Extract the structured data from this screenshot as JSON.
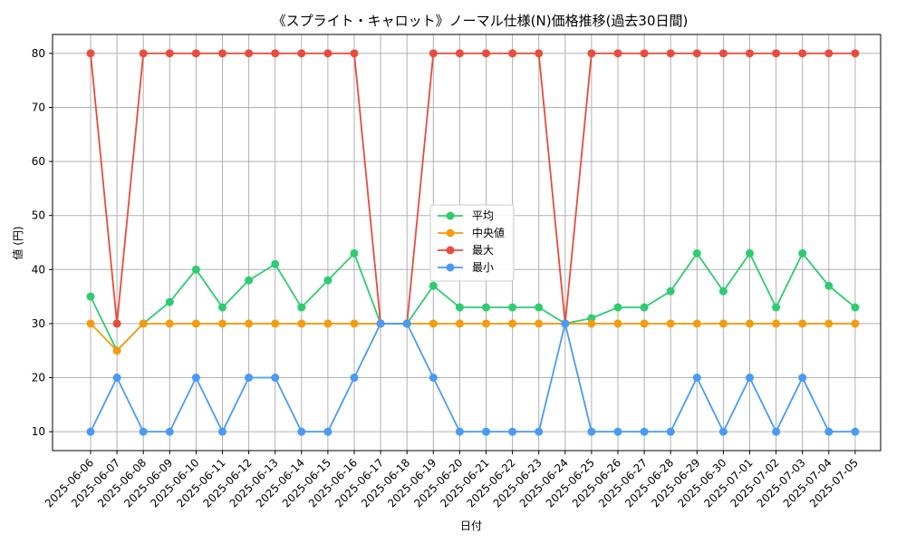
{
  "chart_data": {
    "type": "line",
    "title": "《スプライト・キャロット》ノーマル仕様(N)価格推移(過去30日間)",
    "xlabel": "日付",
    "ylabel": "値 (円)",
    "ylim": [
      6.5,
      83.5
    ],
    "yticks": [
      10,
      20,
      30,
      40,
      50,
      60,
      70,
      80
    ],
    "grid": true,
    "legend_position": "center",
    "categories": [
      "2025-06-06",
      "2025-06-07",
      "2025-06-08",
      "2025-06-09",
      "2025-06-10",
      "2025-06-11",
      "2025-06-12",
      "2025-06-13",
      "2025-06-14",
      "2025-06-15",
      "2025-06-16",
      "2025-06-17",
      "2025-06-18",
      "2025-06-19",
      "2025-06-20",
      "2025-06-21",
      "2025-06-22",
      "2025-06-23",
      "2025-06-24",
      "2025-06-25",
      "2025-06-26",
      "2025-06-27",
      "2025-06-28",
      "2025-06-29",
      "2025-06-30",
      "2025-07-01",
      "2025-07-02",
      "2025-07-03",
      "2025-07-04",
      "2025-07-05"
    ],
    "series": [
      {
        "name": "平均",
        "color": "#2ecc71",
        "values": [
          35,
          25,
          30,
          34,
          40,
          33,
          38,
          41,
          33,
          38,
          43,
          30,
          30,
          37,
          33,
          33,
          33,
          33,
          30,
          31,
          33,
          33,
          36,
          43,
          36,
          43,
          33,
          43,
          37,
          33
        ]
      },
      {
        "name": "中央値",
        "color": "#f39c12",
        "values": [
          30,
          25,
          30,
          30,
          30,
          30,
          30,
          30,
          30,
          30,
          30,
          30,
          30,
          30,
          30,
          30,
          30,
          30,
          30,
          30,
          30,
          30,
          30,
          30,
          30,
          30,
          30,
          30,
          30,
          30
        ]
      },
      {
        "name": "最大",
        "color": "#e74c3c",
        "values": [
          80,
          30,
          80,
          80,
          80,
          80,
          80,
          80,
          80,
          80,
          80,
          30,
          30,
          80,
          80,
          80,
          80,
          80,
          30,
          80,
          80,
          80,
          80,
          80,
          80,
          80,
          80,
          80,
          80,
          80
        ]
      },
      {
        "name": "最小",
        "color": "#4a9af5",
        "values": [
          10,
          20,
          10,
          10,
          20,
          10,
          20,
          20,
          10,
          10,
          20,
          30,
          30,
          20,
          10,
          10,
          10,
          10,
          30,
          10,
          10,
          10,
          10,
          20,
          10,
          20,
          10,
          20,
          10,
          10
        ]
      }
    ]
  }
}
